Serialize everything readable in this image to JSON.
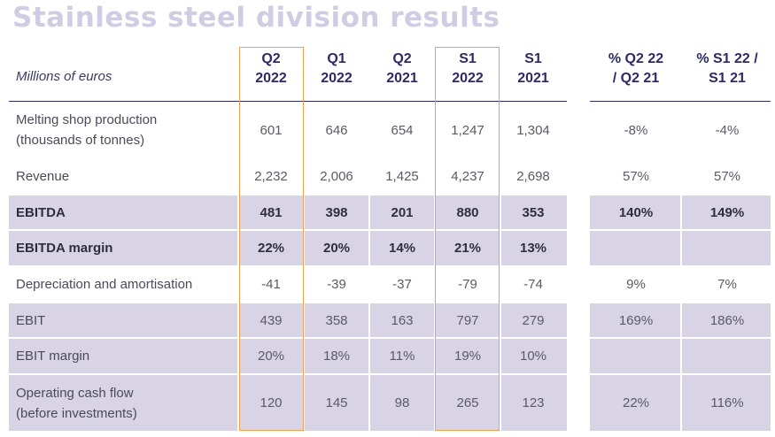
{
  "title": "Stainless steel division results",
  "units_label": "Millions of euros",
  "colors": {
    "title": "#cfcde3",
    "header": "#2d2a66",
    "band": "#d8d4e6",
    "highlight": "#f0a050"
  },
  "columns": [
    {
      "line1": "Q2",
      "line2": "2022"
    },
    {
      "line1": "Q1",
      "line2": "2022"
    },
    {
      "line1": "Q2",
      "line2": "2021"
    },
    {
      "line1": "S1",
      "line2": "2022"
    },
    {
      "line1": "S1",
      "line2": "2021"
    },
    {
      "line1": "% Q2 22",
      "line2": "/ Q2 21"
    },
    {
      "line1": "% S1 22 /",
      "line2": "S1 21"
    }
  ],
  "highlighted_columns": [
    "Q2 2022",
    "S1 2022"
  ],
  "rows": [
    {
      "label1": "Melting shop production",
      "label2": "(thousands of tonnes)",
      "bold": false,
      "band": false,
      "values": [
        "601",
        "646",
        "654",
        "1,247",
        "1,304",
        "-8%",
        "-4%"
      ]
    },
    {
      "label1": "Revenue",
      "label2": "",
      "bold": false,
      "band": false,
      "values": [
        "2,232",
        "2,006",
        "1,425",
        "4,237",
        "2,698",
        "57%",
        "57%"
      ]
    },
    {
      "label1": "EBITDA",
      "label2": "",
      "bold": true,
      "band": true,
      "values": [
        "481",
        "398",
        "201",
        "880",
        "353",
        "140%",
        "149%"
      ]
    },
    {
      "label1": "EBITDA margin",
      "label2": "",
      "bold": true,
      "band": true,
      "values": [
        "22%",
        "20%",
        "14%",
        "21%",
        "13%",
        "",
        ""
      ]
    },
    {
      "label1": "Depreciation and amortisation",
      "label2": "",
      "bold": false,
      "band": false,
      "values": [
        "-41",
        "-39",
        "-37",
        "-79",
        "-74",
        "9%",
        "7%"
      ]
    },
    {
      "label1": "EBIT",
      "label2": "",
      "bold": false,
      "band": true,
      "values": [
        "439",
        "358",
        "163",
        "797",
        "279",
        "169%",
        "186%"
      ]
    },
    {
      "label1": "EBIT margin",
      "label2": "",
      "bold": false,
      "band": true,
      "values": [
        "20%",
        "18%",
        "11%",
        "19%",
        "10%",
        "",
        ""
      ]
    },
    {
      "label1": "Operating cash flow",
      "label2": "(before investments)",
      "bold": false,
      "band": true,
      "values": [
        "120",
        "145",
        "98",
        "265",
        "123",
        "22%",
        "116%"
      ]
    }
  ]
}
